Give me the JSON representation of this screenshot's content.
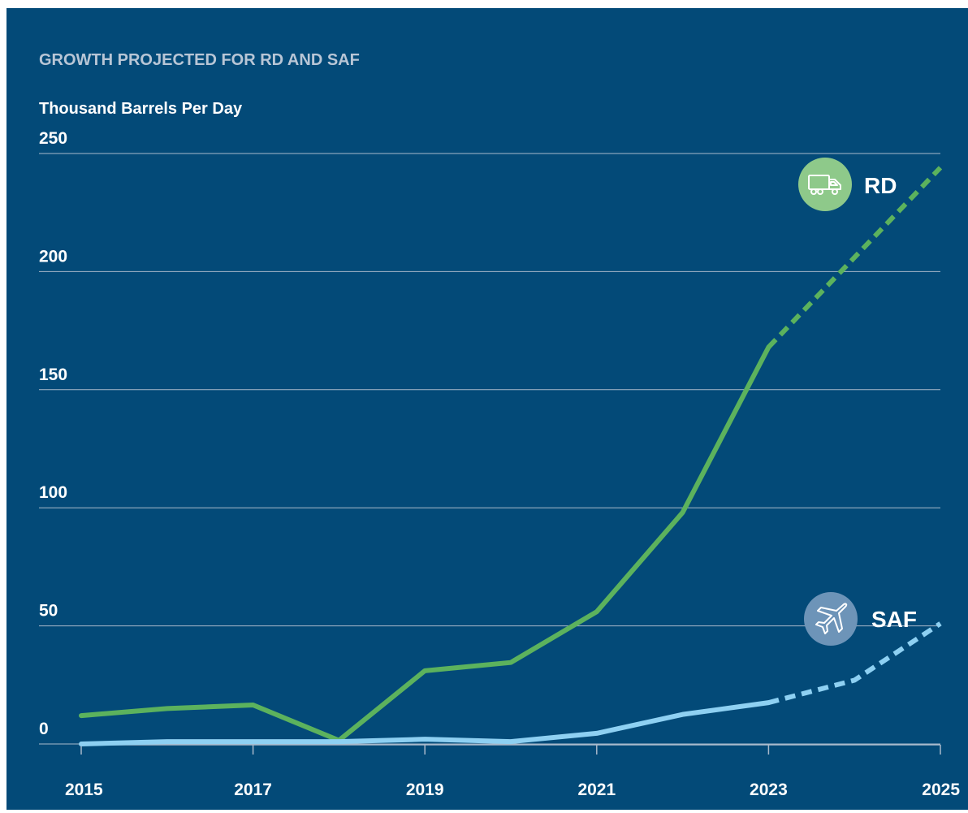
{
  "colors": {
    "background": "#034a78",
    "gridline": "#a9b9cb",
    "title": "#b8c6d6",
    "text": "#ffffff"
  },
  "chart_data": {
    "type": "line",
    "title": "GROWTH PROJECTED FOR RD AND SAF",
    "subtitle": "Thousand Barrels Per Day",
    "xlabel": "",
    "ylabel": "Thousand Barrels Per Day",
    "x": [
      2015,
      2016,
      2017,
      2018,
      2019,
      2020,
      2021,
      2022,
      2023,
      2024,
      2025
    ],
    "x_tick_labels": [
      "2015",
      "2017",
      "2019",
      "2021",
      "2023",
      "2025"
    ],
    "y_tick_labels": [
      "0",
      "50",
      "100",
      "150",
      "200",
      "250"
    ],
    "xlim": [
      2015,
      2025
    ],
    "ylim": [
      0,
      250
    ],
    "grid": true,
    "projection_starts": 2023,
    "series": [
      {
        "name": "RD",
        "icon": "truck-icon",
        "color": "#5cb25d",
        "badge_color": "#8ec98a",
        "values": [
          12,
          15,
          16.5,
          1.5,
          31,
          34.5,
          56,
          98,
          168,
          206,
          244
        ]
      },
      {
        "name": "SAF",
        "icon": "airplane-icon",
        "color": "#8ed0f2",
        "badge_color": "#6d94b8",
        "values": [
          0,
          1,
          1,
          1,
          2,
          1,
          4.5,
          12.5,
          17.5,
          27,
          51
        ]
      }
    ]
  }
}
